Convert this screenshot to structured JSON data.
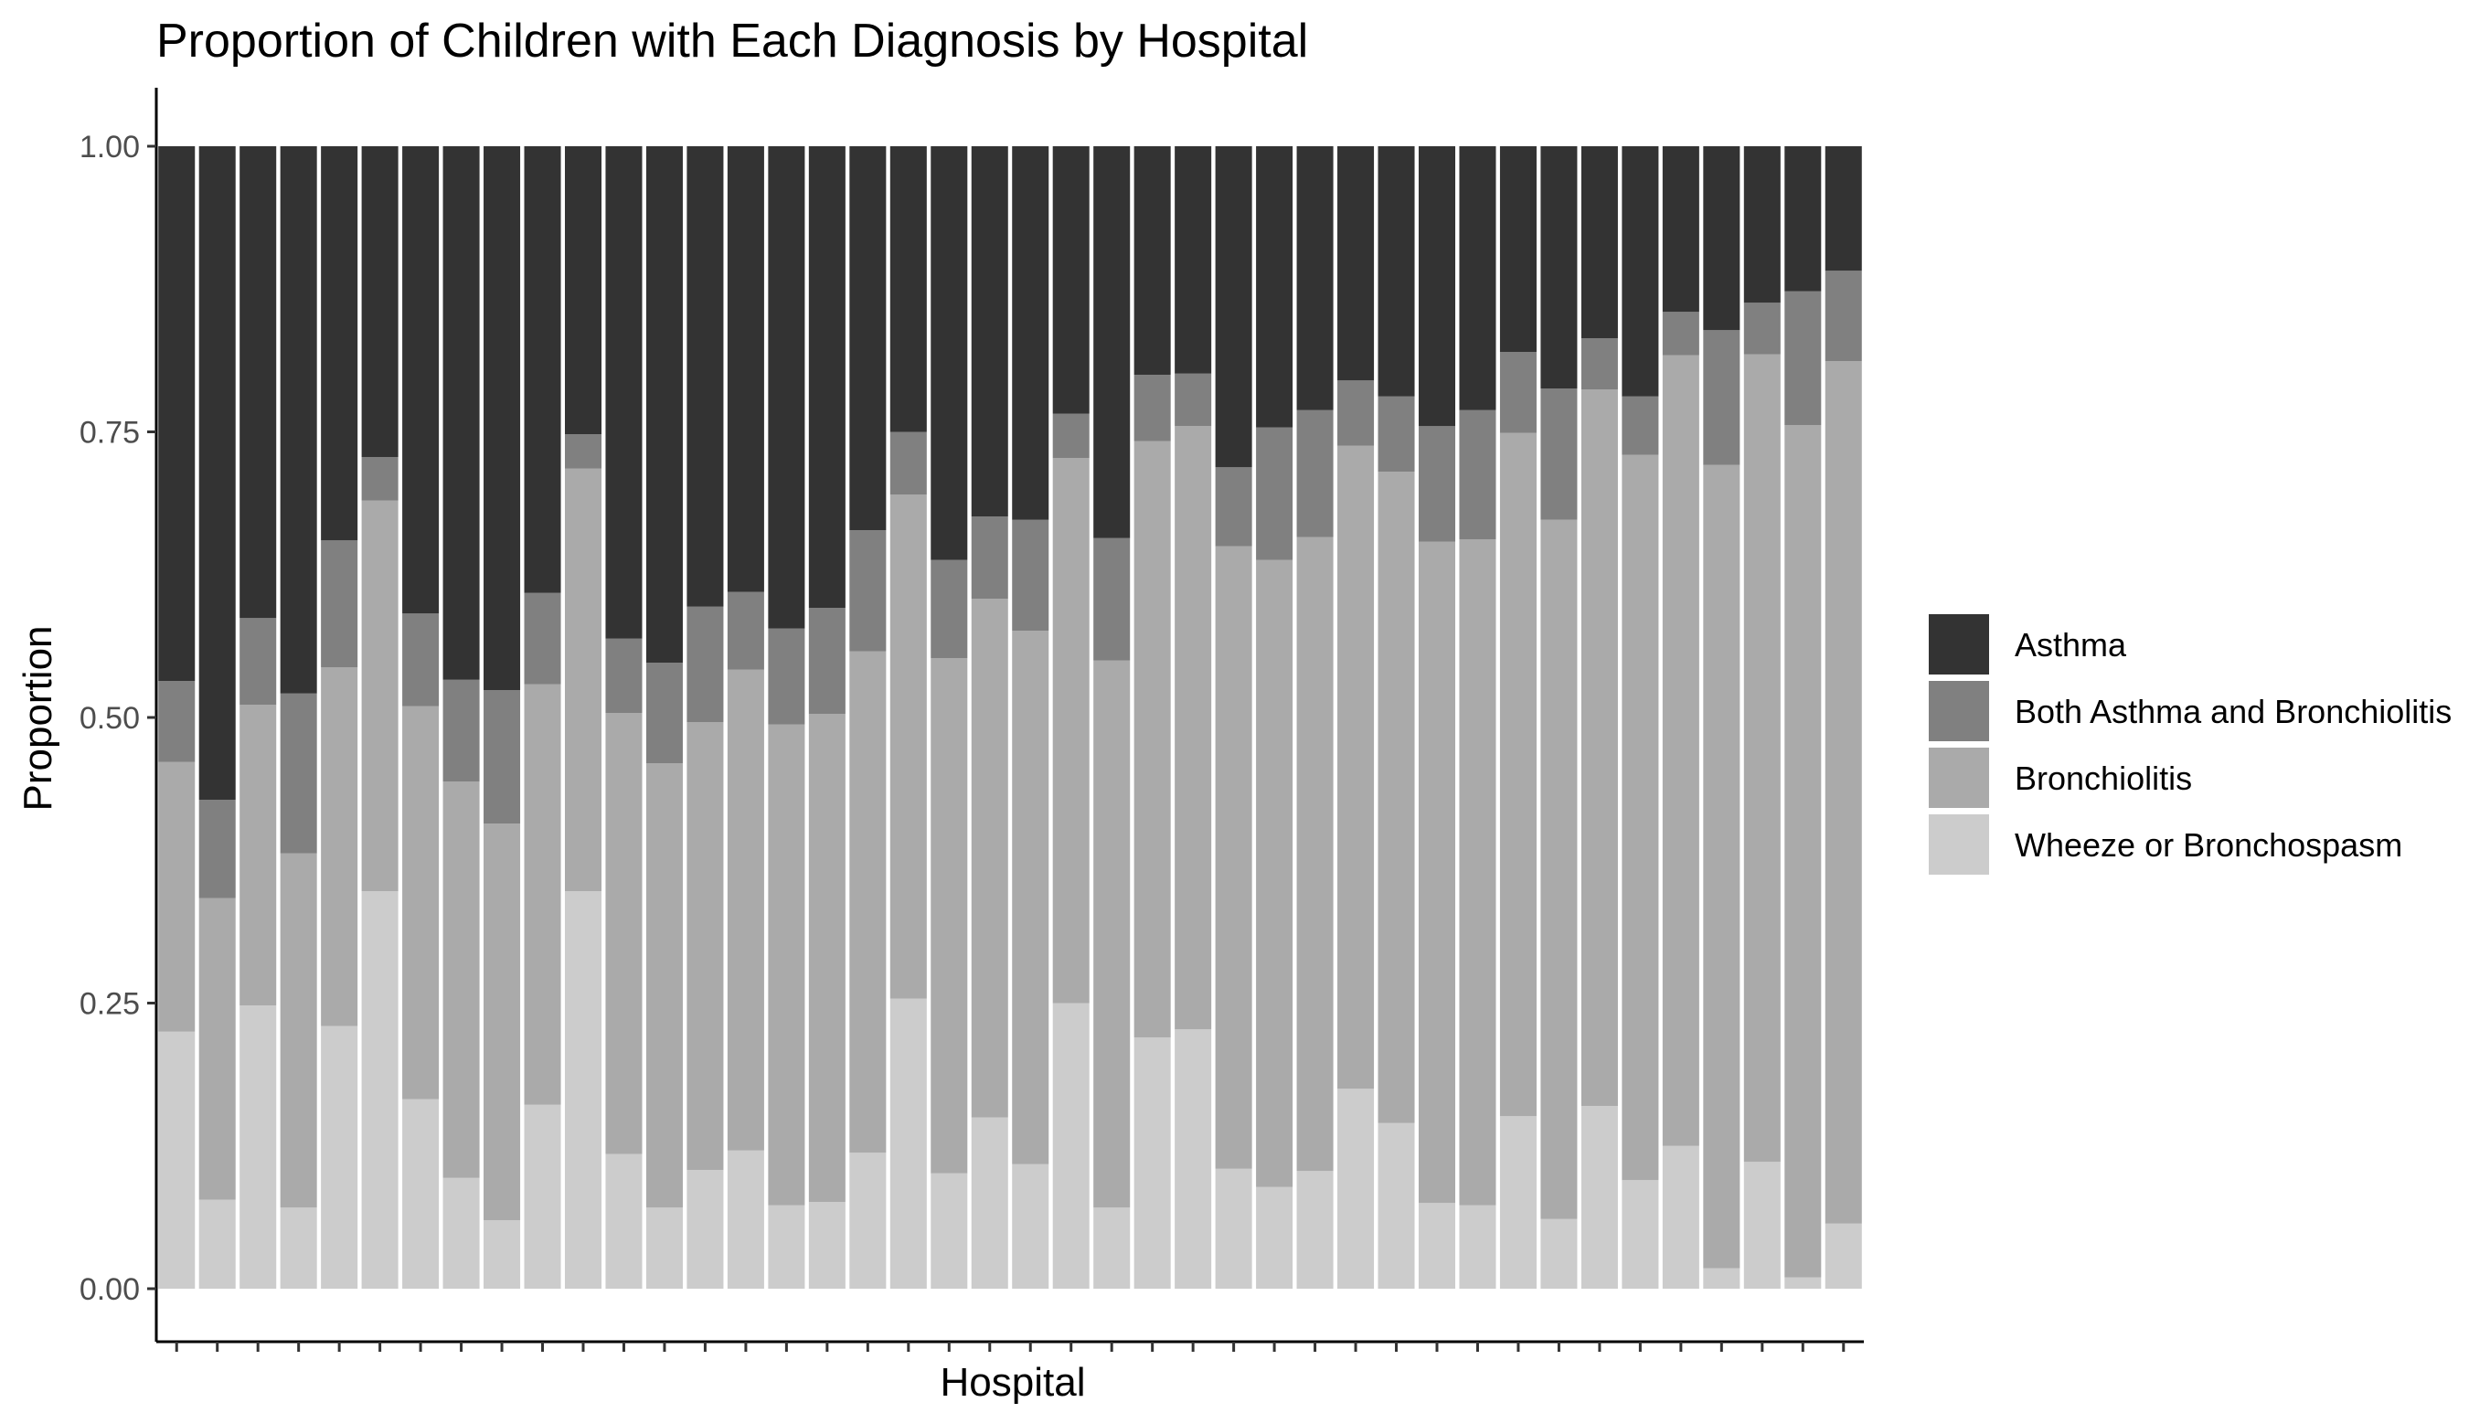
{
  "chart_data": {
    "type": "bar",
    "stacked": true,
    "title": "Proportion of Children with Each Diagnosis by Hospital",
    "xlabel": "Hospital",
    "ylabel": "Proportion",
    "ylim": [
      0,
      1
    ],
    "yticks": [
      "0.00",
      "0.25",
      "0.50",
      "0.75",
      "1.00"
    ],
    "ytick_values": [
      0,
      0.25,
      0.5,
      0.75,
      1.0
    ],
    "x_tick_labels_shown": false,
    "num_categories": 42,
    "grid": false,
    "legend_position": "right",
    "series": [
      {
        "name": "Wheeze or Bronchospasm",
        "color": "#cccccc",
        "values": [
          0.225,
          0.078,
          0.248,
          0.071,
          0.23,
          0.348,
          0.166,
          0.097,
          0.06,
          0.161,
          0.348,
          0.118,
          0.071,
          0.104,
          0.121,
          0.073,
          0.076,
          0.119,
          0.254,
          0.101,
          0.15,
          0.109,
          0.25,
          0.071,
          0.22,
          0.227,
          0.105,
          0.089,
          0.103,
          0.175,
          0.145,
          0.075,
          0.073,
          0.151,
          0.061,
          0.16,
          0.095,
          0.125,
          0.018,
          0.111,
          0.01,
          0.057
        ]
      },
      {
        "name": "Bronchiolitis",
        "color": "#aaaaaa",
        "values": [
          0.236,
          0.264,
          0.263,
          0.31,
          0.314,
          0.342,
          0.344,
          0.347,
          0.347,
          0.368,
          0.37,
          0.386,
          0.389,
          0.392,
          0.421,
          0.421,
          0.427,
          0.439,
          0.441,
          0.451,
          0.454,
          0.467,
          0.477,
          0.479,
          0.522,
          0.528,
          0.545,
          0.549,
          0.555,
          0.563,
          0.57,
          0.579,
          0.583,
          0.598,
          0.612,
          0.627,
          0.635,
          0.692,
          0.703,
          0.707,
          0.746,
          0.755
        ]
      },
      {
        "name": "Both Asthma and Bronchiolitis",
        "color": "#808080",
        "values": [
          0.071,
          0.086,
          0.076,
          0.14,
          0.111,
          0.038,
          0.081,
          0.089,
          0.117,
          0.08,
          0.03,
          0.065,
          0.088,
          0.101,
          0.068,
          0.084,
          0.093,
          0.106,
          0.055,
          0.086,
          0.072,
          0.097,
          0.039,
          0.107,
          0.058,
          0.046,
          0.069,
          0.116,
          0.111,
          0.057,
          0.066,
          0.101,
          0.113,
          0.071,
          0.115,
          0.045,
          0.051,
          0.038,
          0.118,
          0.045,
          0.117,
          0.079
        ]
      },
      {
        "name": "Asthma",
        "color": "#333333",
        "values": [
          0.468,
          0.572,
          0.413,
          0.479,
          0.345,
          0.272,
          0.409,
          0.467,
          0.476,
          0.391,
          0.252,
          0.431,
          0.452,
          0.403,
          0.39,
          0.422,
          0.404,
          0.336,
          0.25,
          0.362,
          0.324,
          0.327,
          0.234,
          0.343,
          0.2,
          0.199,
          0.281,
          0.246,
          0.231,
          0.205,
          0.219,
          0.245,
          0.231,
          0.18,
          0.212,
          0.168,
          0.219,
          0.145,
          0.161,
          0.137,
          0.127,
          0.109
        ]
      }
    ],
    "legend_order": [
      "Asthma",
      "Both Asthma and Bronchiolitis",
      "Bronchiolitis",
      "Wheeze or Bronchospasm"
    ]
  }
}
